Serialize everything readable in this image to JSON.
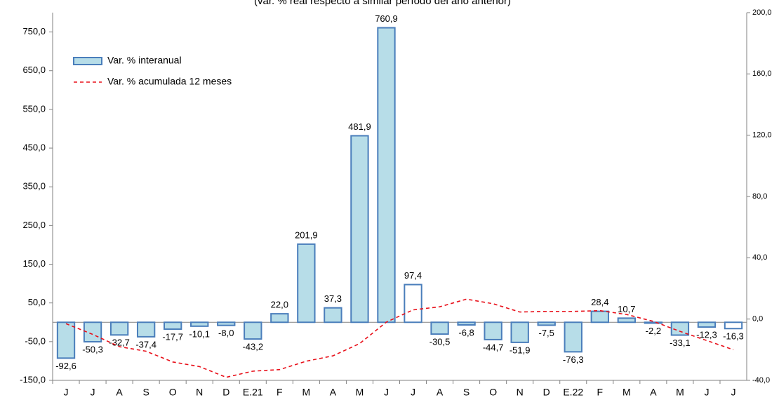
{
  "chart_data": {
    "type": "bar",
    "title": "(var. % real respecto a similar período del año anterior)",
    "categories": [
      "J",
      "J",
      "A",
      "S",
      "O",
      "N",
      "D",
      "E.21",
      "F",
      "M",
      "A",
      "M",
      "J",
      "J",
      "A",
      "S",
      "O",
      "N",
      "D",
      "E.22",
      "F",
      "M",
      "A",
      "M",
      "J",
      "J"
    ],
    "series": [
      {
        "name": "Var. % interanual",
        "type": "bar",
        "color": "#b7dde8",
        "edge_color": "#4a7ebb",
        "bar_colors": [
          "#b7dde8",
          "#b7dde8",
          "#b7dde8",
          "#b7dde8",
          "#b7dde8",
          "#b7dde8",
          "#b7dde8",
          "#b7dde8",
          "#b7dde8",
          "#b7dde8",
          "#b7dde8",
          "#b7dde8",
          "#b7dde8",
          "#ffffff",
          "#b7dde8",
          "#b7dde8",
          "#b7dde8",
          "#b7dde8",
          "#b7dde8",
          "#b7dde8",
          "#b7dde8",
          "#b7dde8",
          "#b7dde8",
          "#b7dde8",
          "#b7dde8",
          "#ffffff"
        ],
        "values": [
          -92.6,
          -50.3,
          -32.7,
          -37.4,
          -17.7,
          -10.1,
          -8.0,
          -43.2,
          22.0,
          201.9,
          37.3,
          481.9,
          760.9,
          97.4,
          -30.5,
          -6.8,
          -44.7,
          -51.9,
          -7.5,
          -76.3,
          28.4,
          10.7,
          -2.2,
          -33.1,
          -12.3,
          -16.3
        ],
        "value_labels": [
          "-92,6",
          "-50,3",
          "-32,7",
          "-37,4",
          "-17,7",
          "-10,1",
          "-8,0",
          "-43,2",
          "22,0",
          "201,9",
          "37,3",
          "481,9",
          "760,9",
          "97,4",
          "-30,5",
          "-6,8",
          "-44,7",
          "-51,9",
          "-7,5",
          "-76,3",
          "28,4",
          "10,7",
          "-2,2",
          "-33,1",
          "-12,3",
          "-16,3"
        ]
      },
      {
        "name": "Var. % acumulada 12 meses",
        "type": "line",
        "axis": "y2",
        "color": "#e8101a",
        "dashed": true,
        "values": [
          -3,
          -10,
          -18,
          -21,
          -28,
          -31,
          -38,
          -34,
          -33,
          -27.5,
          -24,
          -16,
          -2,
          6,
          8,
          13,
          10,
          4.6,
          5,
          5,
          5.5,
          3,
          -1.5,
          -8,
          -14,
          -20
        ]
      }
    ],
    "ylim": [
      -150,
      800
    ],
    "yticks": [
      {
        "value": -150,
        "label": "-150,0"
      },
      {
        "value": -50,
        "label": "-50,0"
      },
      {
        "value": 50,
        "label": "50,0"
      },
      {
        "value": 150,
        "label": "150,0"
      },
      {
        "value": 250,
        "label": "250,0"
      },
      {
        "value": 350,
        "label": "350,0"
      },
      {
        "value": 450,
        "label": "450,0"
      },
      {
        "value": 550,
        "label": "550,0"
      },
      {
        "value": 650,
        "label": "650,0"
      },
      {
        "value": 750,
        "label": "750,0"
      }
    ],
    "y2lim": [
      -40,
      200
    ],
    "y2ticks": [
      {
        "value": -40,
        "label": "-40,0"
      },
      {
        "value": 0,
        "label": "0,0"
      },
      {
        "value": 40,
        "label": "40,0"
      },
      {
        "value": 80,
        "label": "80,0"
      },
      {
        "value": 120,
        "label": "120,0"
      },
      {
        "value": 160,
        "label": "160,0"
      },
      {
        "value": 200,
        "label": "200,0"
      }
    ],
    "legend": "upper left",
    "grid": false
  }
}
